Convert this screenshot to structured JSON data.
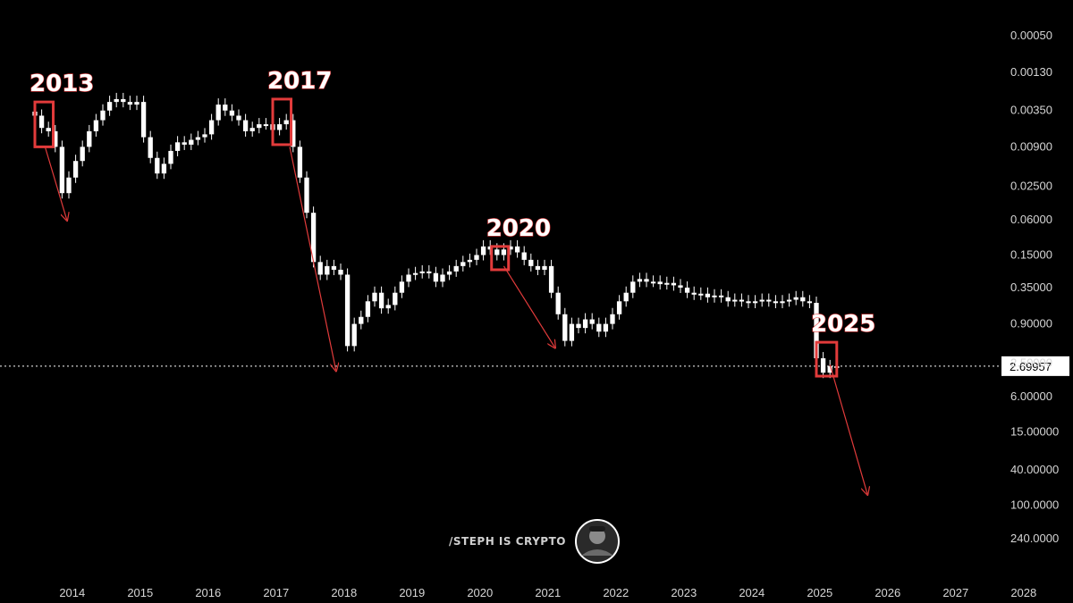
{
  "chart_data": {
    "type": "candlestick",
    "title": "",
    "xlabel": "",
    "ylabel": "",
    "y_scale": "log",
    "y_inverted": true,
    "ylim": [
      0.0003,
      400
    ],
    "xlim": [
      2013.2,
      2028.2
    ],
    "grid": false,
    "y_ticks": [
      "0.00050",
      "0.00130",
      "0.00350",
      "0.00900",
      "0.02500",
      "0.06000",
      "0.15000",
      "0.35000",
      "0.90000",
      "2.50000",
      "6.00000",
      "15.00000",
      "40.00000",
      "100.0000",
      "240.0000"
    ],
    "x_ticks": [
      "2014",
      "2015",
      "2016",
      "2017",
      "2018",
      "2019",
      "2020",
      "2021",
      "2022",
      "2023",
      "2024",
      "2025",
      "2026",
      "2027",
      "2028"
    ],
    "current_price": "2.69957",
    "current_price_value": 2.69957,
    "series_close": [
      [
        2013.45,
        0.004
      ],
      [
        2013.55,
        0.0055
      ],
      [
        2013.65,
        0.006
      ],
      [
        2013.75,
        0.009
      ],
      [
        2013.85,
        0.03
      ],
      [
        2013.95,
        0.02
      ],
      [
        2014.05,
        0.013
      ],
      [
        2014.15,
        0.009
      ],
      [
        2014.25,
        0.006
      ],
      [
        2014.35,
        0.0045
      ],
      [
        2014.45,
        0.0035
      ],
      [
        2014.55,
        0.0028
      ],
      [
        2014.65,
        0.0026
      ],
      [
        2014.75,
        0.0028
      ],
      [
        2014.85,
        0.003
      ],
      [
        2014.95,
        0.0028
      ],
      [
        2015.05,
        0.007
      ],
      [
        2015.15,
        0.012
      ],
      [
        2015.25,
        0.018
      ],
      [
        2015.35,
        0.014
      ],
      [
        2015.45,
        0.01
      ],
      [
        2015.55,
        0.008
      ],
      [
        2015.65,
        0.0085
      ],
      [
        2015.75,
        0.0075
      ],
      [
        2015.85,
        0.007
      ],
      [
        2015.95,
        0.0065
      ],
      [
        2016.05,
        0.0045
      ],
      [
        2016.15,
        0.003
      ],
      [
        2016.25,
        0.0035
      ],
      [
        2016.35,
        0.004
      ],
      [
        2016.45,
        0.0045
      ],
      [
        2016.55,
        0.006
      ],
      [
        2016.65,
        0.0055
      ],
      [
        2016.75,
        0.005
      ],
      [
        2016.85,
        0.005
      ],
      [
        2016.95,
        0.0058
      ],
      [
        2017.05,
        0.005
      ],
      [
        2017.15,
        0.0045
      ],
      [
        2017.25,
        0.009
      ],
      [
        2017.35,
        0.02
      ],
      [
        2017.45,
        0.05
      ],
      [
        2017.55,
        0.18
      ],
      [
        2017.65,
        0.25
      ],
      [
        2017.75,
        0.2
      ],
      [
        2017.85,
        0.22
      ],
      [
        2017.95,
        0.25
      ],
      [
        2018.05,
        1.6
      ],
      [
        2018.15,
        0.9
      ],
      [
        2018.25,
        0.75
      ],
      [
        2018.35,
        0.5
      ],
      [
        2018.45,
        0.4
      ],
      [
        2018.55,
        0.6
      ],
      [
        2018.65,
        0.55
      ],
      [
        2018.75,
        0.4
      ],
      [
        2018.85,
        0.3
      ],
      [
        2018.95,
        0.25
      ],
      [
        2019.05,
        0.24
      ],
      [
        2019.15,
        0.23
      ],
      [
        2019.25,
        0.24
      ],
      [
        2019.35,
        0.3
      ],
      [
        2019.45,
        0.25
      ],
      [
        2019.55,
        0.23
      ],
      [
        2019.65,
        0.2
      ],
      [
        2019.75,
        0.18
      ],
      [
        2019.85,
        0.17
      ],
      [
        2019.95,
        0.15
      ],
      [
        2020.05,
        0.12
      ],
      [
        2020.15,
        0.13
      ],
      [
        2020.25,
        0.15
      ],
      [
        2020.35,
        0.13
      ],
      [
        2020.45,
        0.12
      ],
      [
        2020.55,
        0.14
      ],
      [
        2020.65,
        0.17
      ],
      [
        2020.75,
        0.2
      ],
      [
        2020.85,
        0.22
      ],
      [
        2020.95,
        0.2
      ],
      [
        2021.05,
        0.4
      ],
      [
        2021.15,
        0.7
      ],
      [
        2021.25,
        1.4
      ],
      [
        2021.35,
        0.9
      ],
      [
        2021.45,
        1.0
      ],
      [
        2021.55,
        0.8
      ],
      [
        2021.65,
        0.9
      ],
      [
        2021.75,
        1.1
      ],
      [
        2021.85,
        0.9
      ],
      [
        2021.95,
        0.7
      ],
      [
        2022.05,
        0.5
      ],
      [
        2022.15,
        0.4
      ],
      [
        2022.25,
        0.3
      ],
      [
        2022.35,
        0.28
      ],
      [
        2022.45,
        0.3
      ],
      [
        2022.55,
        0.3
      ],
      [
        2022.65,
        0.32
      ],
      [
        2022.75,
        0.31
      ],
      [
        2022.85,
        0.33
      ],
      [
        2022.95,
        0.35
      ],
      [
        2023.05,
        0.4
      ],
      [
        2023.15,
        0.42
      ],
      [
        2023.25,
        0.41
      ],
      [
        2023.35,
        0.45
      ],
      [
        2023.45,
        0.43
      ],
      [
        2023.55,
        0.45
      ],
      [
        2023.65,
        0.5
      ],
      [
        2023.75,
        0.48
      ],
      [
        2023.85,
        0.5
      ],
      [
        2023.95,
        0.52
      ],
      [
        2024.05,
        0.5
      ],
      [
        2024.15,
        0.48
      ],
      [
        2024.25,
        0.5
      ],
      [
        2024.35,
        0.52
      ],
      [
        2024.45,
        0.5
      ],
      [
        2024.55,
        0.48
      ],
      [
        2024.65,
        0.45
      ],
      [
        2024.75,
        0.5
      ],
      [
        2024.85,
        0.52
      ],
      [
        2024.95,
        2.2
      ],
      [
        2025.05,
        3.2
      ],
      [
        2025.15,
        2.7
      ],
      [
        2025.25,
        2.6996
      ]
    ],
    "annotations": [
      {
        "label": "2013",
        "box_x": [
          2013.45,
          2013.72
        ],
        "box_y": [
          0.0028,
          0.009
        ],
        "arrow_from": [
          2013.6,
          0.009
        ],
        "arrow_to": [
          2013.92,
          0.06
        ]
      },
      {
        "label": "2017",
        "box_x": [
          2016.95,
          2017.22
        ],
        "box_y": [
          0.0026,
          0.0085
        ],
        "arrow_from": [
          2017.2,
          0.009
        ],
        "arrow_to": [
          2017.88,
          3.0
        ]
      },
      {
        "label": "2020",
        "box_x": [
          2020.17,
          2020.42
        ],
        "box_y": [
          0.12,
          0.22
        ],
        "arrow_from": [
          2020.35,
          0.2
        ],
        "arrow_to": [
          2021.1,
          1.65
        ]
      },
      {
        "label": "2025",
        "box_x": [
          2024.95,
          2025.25
        ],
        "box_y": [
          1.45,
          3.5
        ],
        "arrow_from": [
          2025.15,
          2.6
        ],
        "arrow_to": [
          2025.7,
          75
        ]
      }
    ]
  },
  "watermark": {
    "text": "/STEPH IS CRYPTO"
  },
  "colors": {
    "background": "#000000",
    "candle": "#ffffff",
    "annotation": "#e23b3b",
    "axis_text": "#d6d6d6"
  }
}
